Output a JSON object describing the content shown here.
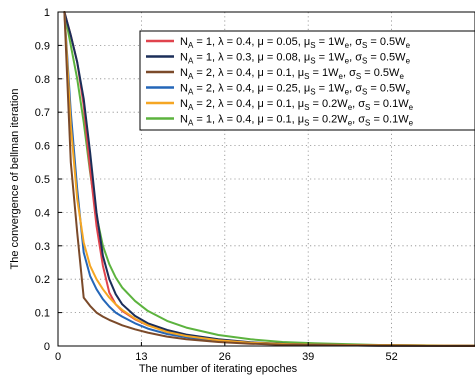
{
  "chart_data": {
    "type": "line",
    "xlabel": "The number of iterating epoches",
    "ylabel": "The convergence of bellman iteration",
    "xlim": [
      0,
      65
    ],
    "ylim": [
      0,
      1
    ],
    "xticks": [
      "0",
      "13",
      "26",
      "39",
      "52"
    ],
    "yticks": [
      "0",
      "0.1",
      "0.2",
      "0.3",
      "0.4",
      "0.5",
      "0.6",
      "0.7",
      "0.8",
      "0.9",
      "1"
    ],
    "grid": true,
    "legend_position": "top-right",
    "series": [
      {
        "name": "N_A = 1, λ = 0.4, μ = 0.05, μ_S = 1W_e, σ_S = 0.5W_e",
        "color": "#e0434d",
        "x": [
          1,
          2,
          3,
          4,
          5,
          6,
          7,
          8,
          9,
          10,
          12,
          14,
          17,
          20,
          25,
          30,
          35,
          40,
          50,
          65
        ],
        "y": [
          1.0,
          0.93,
          0.85,
          0.72,
          0.53,
          0.36,
          0.24,
          0.16,
          0.125,
          0.105,
          0.08,
          0.062,
          0.045,
          0.032,
          0.018,
          0.01,
          0.006,
          0.004,
          0.002,
          0.001
        ]
      },
      {
        "name": "N_A = 1, λ = 0.3, μ = 0.08, μ_S = 1W_e, σ_S = 0.5W_e",
        "color": "#1b2e59",
        "x": [
          1,
          2,
          3,
          4,
          5,
          6,
          7,
          8,
          9,
          10,
          12,
          14,
          17,
          20,
          25,
          30,
          35,
          40,
          50,
          65
        ],
        "y": [
          1.0,
          0.93,
          0.85,
          0.74,
          0.58,
          0.4,
          0.27,
          0.2,
          0.155,
          0.125,
          0.09,
          0.068,
          0.048,
          0.034,
          0.02,
          0.011,
          0.007,
          0.004,
          0.002,
          0.001
        ]
      },
      {
        "name": "N_A = 2, λ = 0.4, μ = 0.1, μ_S = 1W_e, σ_S = 0.5W_e",
        "color": "#7b4a2a",
        "x": [
          1,
          2,
          3,
          4,
          5,
          6,
          7,
          8,
          9,
          10,
          12,
          14,
          17,
          20,
          25,
          30,
          35,
          40,
          50,
          65
        ],
        "y": [
          1.0,
          0.55,
          0.34,
          0.145,
          0.12,
          0.1,
          0.088,
          0.078,
          0.07,
          0.062,
          0.05,
          0.04,
          0.028,
          0.02,
          0.012,
          0.007,
          0.004,
          0.003,
          0.001,
          0.0
        ]
      },
      {
        "name": "N_A = 2, λ = 0.4, μ = 0.25, μ_S = 1W_e, σ_S = 0.5W_e",
        "color": "#2466b8",
        "x": [
          1,
          2,
          3,
          4,
          5,
          6,
          7,
          8,
          9,
          10,
          12,
          14,
          17,
          20,
          25,
          30,
          35,
          40,
          50,
          65
        ],
        "y": [
          1.0,
          0.7,
          0.47,
          0.28,
          0.21,
          0.17,
          0.14,
          0.118,
          0.1,
          0.088,
          0.068,
          0.052,
          0.036,
          0.026,
          0.015,
          0.008,
          0.005,
          0.003,
          0.001,
          0.0
        ]
      },
      {
        "name": "N_A = 2, λ = 0.4, μ = 0.1, μ_S = 0.2W_e, σ_S = 0.1W_e",
        "color": "#f5a623",
        "x": [
          1,
          2,
          3,
          4,
          5,
          6,
          7,
          8,
          9,
          10,
          12,
          14,
          17,
          20,
          25,
          30,
          35,
          40,
          50,
          65
        ],
        "y": [
          1.0,
          0.66,
          0.44,
          0.31,
          0.24,
          0.2,
          0.17,
          0.145,
          0.125,
          0.108,
          0.082,
          0.062,
          0.042,
          0.03,
          0.017,
          0.01,
          0.006,
          0.004,
          0.002,
          0.001
        ]
      },
      {
        "name": "N_A = 1, λ = 0.4, μ = 0.1, μ_S = 0.2W_e, σ_S = 0.1W_e",
        "color": "#5cb33e",
        "x": [
          1,
          2,
          3,
          4,
          5,
          6,
          7,
          8,
          9,
          10,
          12,
          14,
          17,
          20,
          25,
          30,
          35,
          40,
          50,
          65
        ],
        "y": [
          1.0,
          0.9,
          0.8,
          0.67,
          0.52,
          0.39,
          0.3,
          0.245,
          0.205,
          0.175,
          0.135,
          0.105,
          0.075,
          0.055,
          0.033,
          0.02,
          0.012,
          0.008,
          0.003,
          0.001
        ]
      }
    ]
  },
  "legend": [
    {
      "color": "#e0434d",
      "segments": [
        [
          "N",
          ""
        ],
        [
          "A",
          "sub"
        ],
        [
          " = 1, λ = 0.4, μ = 0.05, μ",
          ""
        ],
        [
          "S",
          "sub"
        ],
        [
          " = 1W",
          ""
        ],
        [
          "e",
          "sub"
        ],
        [
          ", σ",
          ""
        ],
        [
          "S",
          "sub"
        ],
        [
          " = 0.5W",
          ""
        ],
        [
          "e",
          "sub"
        ]
      ]
    },
    {
      "color": "#1b2e59",
      "segments": [
        [
          "N",
          ""
        ],
        [
          "A",
          "sub"
        ],
        [
          " = 1, λ = 0.3, μ = 0.08, μ",
          ""
        ],
        [
          "S",
          "sub"
        ],
        [
          " = 1W",
          ""
        ],
        [
          "e",
          "sub"
        ],
        [
          ", σ",
          ""
        ],
        [
          "S",
          "sub"
        ],
        [
          " = 0.5W",
          ""
        ],
        [
          "e",
          "sub"
        ]
      ]
    },
    {
      "color": "#7b4a2a",
      "segments": [
        [
          "N",
          ""
        ],
        [
          "A",
          "sub"
        ],
        [
          " = 2, λ = 0.4, μ = 0.1, μ",
          ""
        ],
        [
          "S",
          "sub"
        ],
        [
          " = 1W",
          ""
        ],
        [
          "e",
          "sub"
        ],
        [
          ", σ",
          ""
        ],
        [
          "S",
          "sub"
        ],
        [
          " = 0.5W",
          ""
        ],
        [
          "e",
          "sub"
        ]
      ]
    },
    {
      "color": "#2466b8",
      "segments": [
        [
          "N",
          ""
        ],
        [
          "A",
          "sub"
        ],
        [
          " = 2, λ = 0.4, μ = 0.25, μ",
          ""
        ],
        [
          "S",
          "sub"
        ],
        [
          " = 1W",
          ""
        ],
        [
          "e",
          "sub"
        ],
        [
          ", σ",
          ""
        ],
        [
          "S",
          "sub"
        ],
        [
          " = 0.5W",
          ""
        ],
        [
          "e",
          "sub"
        ]
      ]
    },
    {
      "color": "#f5a623",
      "segments": [
        [
          "N",
          ""
        ],
        [
          "A",
          "sub"
        ],
        [
          " = 2, λ = 0.4, μ = 0.1, μ",
          ""
        ],
        [
          "S",
          "sub"
        ],
        [
          " = 0.2W",
          ""
        ],
        [
          "e",
          "sub"
        ],
        [
          ", σ",
          ""
        ],
        [
          "S",
          "sub"
        ],
        [
          " = 0.1W",
          ""
        ],
        [
          "e",
          "sub"
        ]
      ]
    },
    {
      "color": "#5cb33e",
      "segments": [
        [
          "N",
          ""
        ],
        [
          "A",
          "sub"
        ],
        [
          " = 1, λ = 0.4, μ = 0.1, μ",
          ""
        ],
        [
          "S",
          "sub"
        ],
        [
          " = 0.2W",
          ""
        ],
        [
          "e",
          "sub"
        ],
        [
          ", σ",
          ""
        ],
        [
          "S",
          "sub"
        ],
        [
          " = 0.1W",
          ""
        ],
        [
          "e",
          "sub"
        ]
      ]
    }
  ]
}
